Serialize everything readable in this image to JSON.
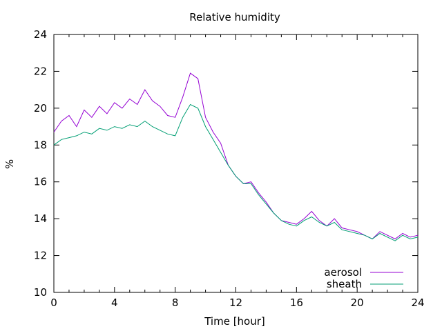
{
  "chart_data": {
    "type": "line",
    "title": "Relative humidity",
    "xlabel": "Time [hour]",
    "ylabel": "%",
    "xlim": [
      0,
      24
    ],
    "ylim": [
      10,
      24
    ],
    "xticks": [
      0,
      4,
      8,
      12,
      16,
      20,
      24
    ],
    "yticks": [
      10,
      12,
      14,
      16,
      18,
      20,
      22,
      24
    ],
    "grid": false,
    "legend_position": "bottom-right",
    "series": [
      {
        "name": "aerosol",
        "color": "#9400d3",
        "x": [
          0,
          0.5,
          1,
          1.5,
          2,
          2.5,
          3,
          3.5,
          4,
          4.5,
          5,
          5.5,
          6,
          6.5,
          7,
          7.5,
          8,
          8.5,
          9,
          9.5,
          10,
          10.5,
          11,
          11.5,
          12,
          12.5,
          13,
          13.5,
          14,
          14.5,
          15,
          15.5,
          16,
          16.5,
          17,
          17.5,
          18,
          18.5,
          19,
          19.5,
          20,
          20.5,
          21,
          21.5,
          22,
          22.5,
          23,
          23.5,
          24
        ],
        "y": [
          18.7,
          19.3,
          19.6,
          19.0,
          19.9,
          19.5,
          20.1,
          19.7,
          20.3,
          20.0,
          20.5,
          20.2,
          21.0,
          20.4,
          20.1,
          19.6,
          19.5,
          20.6,
          21.9,
          21.6,
          19.5,
          18.7,
          18.1,
          16.9,
          16.3,
          15.9,
          16.0,
          15.4,
          14.9,
          14.3,
          13.9,
          13.8,
          13.7,
          14.0,
          14.4,
          13.9,
          13.6,
          14.0,
          13.5,
          13.4,
          13.3,
          13.1,
          12.9,
          13.3,
          13.1,
          12.9,
          13.2,
          13.0,
          13.1
        ]
      },
      {
        "name": "sheath",
        "color": "#009e73",
        "x": [
          0,
          0.5,
          1,
          1.5,
          2,
          2.5,
          3,
          3.5,
          4,
          4.5,
          5,
          5.5,
          6,
          6.5,
          7,
          7.5,
          8,
          8.5,
          9,
          9.5,
          10,
          10.5,
          11,
          11.5,
          12,
          12.5,
          13,
          13.5,
          14,
          14.5,
          15,
          15.5,
          16,
          16.5,
          17,
          17.5,
          18,
          18.5,
          19,
          19.5,
          20,
          20.5,
          21,
          21.5,
          22,
          22.5,
          23,
          23.5,
          24
        ],
        "y": [
          18.0,
          18.3,
          18.4,
          18.5,
          18.7,
          18.6,
          18.9,
          18.8,
          19.0,
          18.9,
          19.1,
          19.0,
          19.3,
          19.0,
          18.8,
          18.6,
          18.5,
          19.5,
          20.2,
          20.0,
          19.0,
          18.3,
          17.6,
          16.9,
          16.3,
          15.9,
          15.9,
          15.3,
          14.8,
          14.3,
          13.9,
          13.7,
          13.6,
          13.9,
          14.1,
          13.8,
          13.6,
          13.8,
          13.4,
          13.3,
          13.2,
          13.1,
          12.9,
          13.2,
          13.0,
          12.8,
          13.1,
          12.9,
          13.0
        ]
      }
    ]
  }
}
